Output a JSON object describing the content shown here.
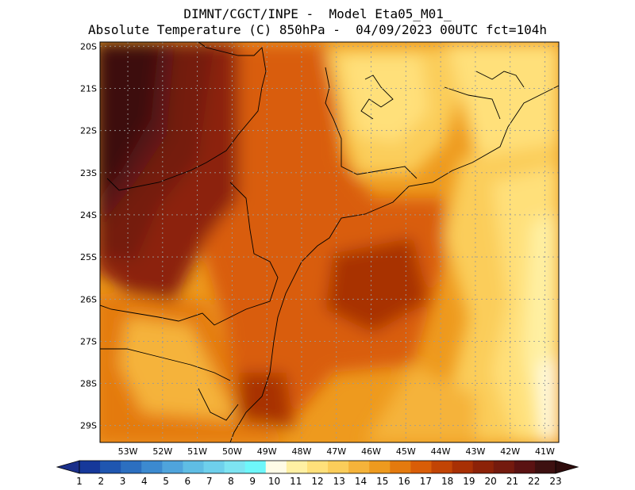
{
  "title": {
    "line1": "DIMNT/CGCT/INPE -  Model Eta05_M01_",
    "line2": "Absolute Temperature (C) 850hPa -  04/09/2023 00UTC fct=104h"
  },
  "map": {
    "lon_range": [
      -53.8,
      -40.6
    ],
    "lat_range": [
      -29.4,
      -19.9
    ],
    "lat_ticks": [
      "20S",
      "21S",
      "22S",
      "23S",
      "24S",
      "25S",
      "26S",
      "27S",
      "28S",
      "29S"
    ],
    "lon_ticks": [
      "53W",
      "52W",
      "51W",
      "50W",
      "49W",
      "48W",
      "47W",
      "46W",
      "45W",
      "44W",
      "43W",
      "42W",
      "41W"
    ],
    "gridlines": "dotted"
  },
  "colorbar": {
    "labels": [
      "1",
      "2",
      "3",
      "4",
      "5",
      "6",
      "7",
      "8",
      "9",
      "10",
      "11",
      "12",
      "13",
      "14",
      "15",
      "16",
      "17",
      "18",
      "19",
      "20",
      "21",
      "22",
      "23"
    ],
    "colors": [
      "#16389a",
      "#1f56b0",
      "#2c6fc0",
      "#3c8ad0",
      "#4fa4dc",
      "#5fbde4",
      "#6ed0ec",
      "#7de4f2",
      "#6ef7fa",
      "#fffbe6",
      "#fff0a3",
      "#ffe07a",
      "#fbcd5a",
      "#f5b33a",
      "#ee9a1e",
      "#e47a0e",
      "#d95d07",
      "#c24404",
      "#a83004",
      "#8c2208",
      "#741a0e",
      "#5a1212",
      "#3d1010"
    ]
  }
}
